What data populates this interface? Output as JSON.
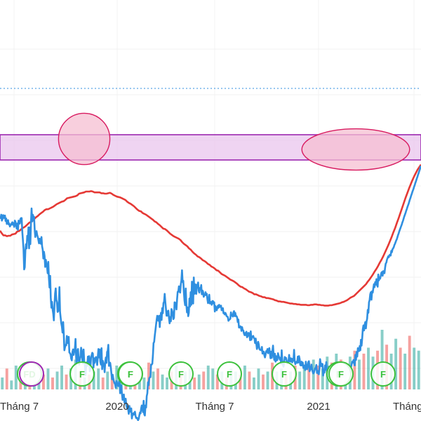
{
  "chart_data": {
    "type": "line",
    "x_tick_labels": [
      "Tháng 7",
      "2020",
      "Tháng 7",
      "2021",
      "Tháng"
    ],
    "grid": true,
    "colors": {
      "price": "#2f8fe0",
      "moving_average": "#e53935",
      "resistance_zone_fill": "#e9c6ee",
      "resistance_zone_border": "#9c27b0",
      "highlight_fill": "#f6bfd1",
      "highlight_border": "#d81b60",
      "last_price_line": "#2f8fe0",
      "event_green": "#3cc13c",
      "event_purple": "#9c27b0",
      "volume_up": "#26a69a",
      "volume_down": "#ef5350"
    },
    "series": [
      {
        "values": [
          0.485,
          0.482,
          0.49,
          0.476,
          0.479,
          0.489,
          0.488,
          0.482,
          0.488,
          0.475,
          0.481,
          0.468,
          0.472,
          0.477,
          0.467,
          0.469,
          0.462,
          0.465,
          0.466,
          0.47,
          0.472,
          0.466,
          0.47,
          0.461,
          0.476,
          0.473,
          0.465,
          0.457,
          0.469,
          0.454,
          0.476,
          0.471,
          0.469,
          0.48,
          0.482,
          0.482,
          0.45,
          0.43,
          0.408,
          0.36,
          0.365,
          0.405,
          0.42,
          0.41,
          0.44,
          0.43,
          0.46,
          0.41,
          0.46,
          0.42,
          0.47,
          0.505,
          0.474,
          0.49,
          0.485,
          0.485,
          0.456,
          0.437,
          0.446,
          0.451,
          0.442,
          0.437,
          0.43,
          0.422,
          0.433,
          0.427,
          0.421,
          0.437,
          0.415,
          0.407,
          0.386,
          0.402,
          0.392,
          0.366,
          0.383,
          0.373,
          0.366,
          0.351,
          0.378,
          0.339,
          0.317,
          0.345,
          0.293,
          0.269,
          0.283,
          0.265,
          0.255,
          0.239,
          0.275,
          0.303,
          0.315,
          0.288,
          0.282,
          0.259,
          0.261,
          0.276,
          0.318,
          0.259,
          0.245,
          0.232,
          0.224,
          0.21,
          0.235,
          0.207,
          0.168,
          0.175,
          0.181,
          0.18,
          0.202,
          0.186,
          0.185,
          0.2,
          0.163,
          0.161,
          0.158,
          0.148,
          0.144,
          0.164,
          0.17,
          0.157,
          0.166,
          0.173,
          0.195,
          0.149,
          0.136,
          0.166,
          0.171,
          0.146,
          0.134,
          0.147,
          0.154,
          0.174,
          0.166,
          0.144,
          0.137,
          0.17,
          0.142,
          0.136,
          0.109,
          0.126,
          0.139,
          0.131,
          0.153,
          0.14,
          0.154,
          0.118,
          0.126,
          0.15,
          0.156,
          0.162,
          0.16,
          0.127,
          0.149,
          0.138,
          0.148,
          0.152,
          0.148,
          0.133,
          0.153,
          0.171,
          0.151,
          0.17,
          0.141,
          0.134,
          0.173,
          0.123,
          0.143,
          0.136,
          0.135,
          0.116,
          0.141,
          0.151,
          0.138,
          0.164,
          0.167,
          0.181,
          0.131,
          0.139,
          0.138,
          0.127,
          0.112,
          0.099,
          0.11,
          0.101,
          0.094,
          0.09,
          0.087,
          0.079,
          0.095,
          0.091,
          0.085,
          0.083,
          0.09,
          0.099,
          0.066,
          0.071,
          0.085,
          0.064,
          0.05,
          0.062,
          0.063,
          0.044,
          0.049,
          0.053,
          0.037,
          0.031,
          0.035,
          0.028,
          0.017,
          0.036,
          0.022,
          0.028,
          0.03,
          0.006,
          0.015,
          0.018,
          0.015,
          0.02,
          0.022,
          0.011,
          0.007,
          0.008,
          0.005,
          0.002,
          0.005,
          0.013,
          0.02,
          0.018,
          0.03,
          0.037,
          0.028,
          0.021,
          0.048,
          0.016,
          0.013,
          0.037,
          0.032,
          0.059,
          0.066,
          0.092,
          0.085,
          0.101,
          0.104,
          0.104,
          0.134,
          0.134,
          0.136,
          0.156,
          0.185,
          0.188,
          0.203,
          0.215,
          0.228,
          0.24,
          0.25,
          0.239,
          0.238,
          0.25,
          0.223,
          0.244,
          0.257,
          0.24,
          0.268,
          0.256,
          0.28,
          0.283,
          0.302,
          0.283,
          0.267,
          0.25,
          0.25,
          0.261,
          0.262,
          0.244,
          0.232,
          0.247,
          0.237,
          0.266,
          0.262,
          0.255,
          0.242,
          0.245,
          0.282,
          0.281,
          0.278,
          0.265,
          0.289,
          0.307,
          0.307,
          0.32,
          0.31,
          0.305,
          0.324,
          0.334,
          0.358,
          0.33,
          0.333,
          0.306,
          0.286,
          0.275,
          0.315,
          0.277,
          0.258,
          0.27,
          0.249,
          0.257,
          0.291,
          0.272,
          0.306,
          0.276,
          0.331,
          0.282,
          0.279,
          0.341,
          0.302,
          0.325,
          0.304,
          0.302,
          0.324,
          0.317,
          0.329,
          0.309,
          0.305,
          0.316,
          0.314,
          0.323,
          0.301,
          0.31,
          0.307,
          0.295,
          0.298,
          0.299,
          0.306,
          0.299,
          0.302,
          0.289,
          0.28,
          0.287,
          0.3,
          0.279,
          0.283,
          0.282,
          0.276,
          0.285,
          0.285,
          0.279,
          0.282,
          0.26,
          0.273,
          0.27,
          0.263,
          0.268,
          0.274,
          0.269,
          0.276,
          0.271,
          0.272,
          0.274,
          0.263,
          0.266,
          0.268,
          0.256,
          0.257,
          0.253,
          0.257,
          0.254,
          0.249,
          0.248,
          0.247,
          0.238,
          0.241,
          0.241,
          0.243,
          0.258,
          0.251,
          0.251,
          0.248,
          0.258,
          0.261,
          0.249,
          0.257,
          0.249,
          0.249,
          0.246,
          0.235,
          0.241,
          0.222,
          0.222,
          0.225,
          0.224,
          0.214,
          0.223,
          0.216,
          0.215,
          0.208,
          0.204,
          0.209,
          0.204,
          0.212,
          0.199,
          0.201,
          0.209,
          0.209,
          0.203,
          0.192,
          0.213,
          0.193,
          0.2,
          0.201,
          0.202,
          0.197,
          0.196,
          0.185,
          0.196,
          0.184,
          0.171,
          0.176,
          0.188,
          0.182,
          0.171,
          0.169,
          0.169,
          0.168,
          0.176,
          0.16,
          0.165,
          0.165,
          0.156,
          0.151,
          0.158,
          0.166,
          0.164,
          0.171,
          0.161,
          0.17,
          0.173,
          0.161,
          0.149,
          0.165,
          0.15,
          0.166,
          0.179,
          0.156,
          0.145,
          0.16,
          0.141,
          0.154,
          0.144,
          0.145,
          0.161,
          0.155,
          0.151,
          0.146,
          0.15,
          0.136,
          0.168,
          0.143,
          0.133,
          0.129,
          0.14,
          0.152,
          0.148,
          0.15,
          0.143,
          0.138,
          0.139,
          0.142,
          0.157,
          0.142,
          0.141,
          0.149,
          0.147,
          0.139,
          0.148,
          0.143,
          0.169,
          0.142,
          0.135,
          0.14,
          0.141,
          0.138,
          0.153,
          0.139,
          0.154,
          0.147,
          0.133,
          0.132,
          0.141,
          0.132,
          0.139,
          0.126,
          0.132,
          0.131,
          0.121,
          0.141,
          0.128,
          0.123,
          0.13,
          0.14,
          0.142,
          0.118,
          0.121,
          0.126,
          0.134,
          0.124,
          0.117,
          0.113,
          0.115,
          0.12,
          0.125,
          0.126,
          0.133,
          0.114,
          0.119,
          0.114,
          0.111,
          0.125,
          0.147,
          0.136,
          0.13,
          0.136,
          0.135,
          0.108,
          0.119,
          0.115,
          0.132,
          0.122,
          0.14,
          0.118,
          0.12,
          0.106,
          0.129,
          0.121,
          0.117,
          0.122,
          0.109,
          0.114,
          0.107,
          0.115,
          0.121,
          0.116,
          0.132,
          0.118,
          0.126,
          0.116,
          0.118,
          0.116,
          0.103,
          0.113,
          0.114,
          0.118,
          0.114,
          0.113,
          0.119,
          0.118,
          0.105,
          0.107,
          0.109,
          0.113,
          0.122,
          0.128,
          0.121,
          0.125,
          0.109,
          0.117,
          0.115,
          0.118,
          0.128,
          0.135,
          0.141,
          0.139,
          0.145,
          0.137,
          0.132,
          0.157,
          0.145,
          0.164,
          0.153,
          0.173,
          0.17,
          0.166,
          0.178,
          0.168,
          0.193,
          0.179,
          0.196,
          0.218,
          0.227,
          0.215,
          0.228,
          0.235,
          0.22,
          0.236,
          0.243,
          0.264,
          0.257,
          0.282,
          0.287,
          0.301,
          0.306,
          0.288,
          0.308,
          0.305,
          0.315,
          0.325,
          0.318,
          0.33,
          0.324,
          0.337,
          0.323,
          0.319,
          0.348,
          0.334,
          0.341,
          0.338,
          0.345,
          0.352,
          0.354,
          0.345,
          0.356,
          0.354,
          0.351,
          0.364,
          0.374,
          0.376,
          0.383,
          0.387,
          0.391,
          0.389,
          0.394,
          0.395,
          0.393,
          0.404,
          0.401,
          0.408,
          0.41,
          0.413,
          0.418,
          0.421,
          0.425,
          0.429,
          0.432,
          0.437,
          0.442,
          0.446,
          0.451,
          0.455,
          0.459,
          0.463,
          0.467,
          0.472,
          0.476,
          0.481,
          0.486,
          0.49,
          0.494,
          0.499,
          0.503,
          0.508,
          0.512,
          0.516,
          0.521,
          0.526,
          0.53,
          0.535,
          0.539,
          0.544,
          0.548,
          0.552,
          0.557,
          0.561,
          0.566,
          0.57,
          0.575,
          0.579,
          0.584,
          0.588,
          0.593,
          0.597,
          0.602,
          0.606
        ]
      },
      {
        "values": [
          0.452,
          0.446,
          0.441,
          0.441,
          0.439,
          0.44,
          0.44,
          0.443,
          0.444,
          0.445,
          0.45,
          0.451,
          0.454,
          0.458,
          0.46,
          0.463,
          0.467,
          0.471,
          0.473,
          0.476,
          0.48,
          0.484,
          0.487,
          0.491,
          0.494,
          0.497,
          0.501,
          0.503,
          0.503,
          0.505,
          0.507,
          0.509,
          0.512,
          0.515,
          0.517,
          0.519,
          0.521,
          0.522,
          0.525,
          0.529,
          0.53,
          0.531,
          0.532,
          0.533,
          0.534,
          0.536,
          0.54,
          0.541,
          0.542,
          0.543,
          0.545,
          0.545,
          0.545,
          0.546,
          0.545,
          0.543,
          0.543,
          0.543,
          0.543,
          0.541,
          0.541,
          0.54,
          0.54,
          0.541,
          0.542,
          0.54,
          0.537,
          0.535,
          0.533,
          0.532,
          0.531,
          0.529,
          0.527,
          0.525,
          0.521,
          0.518,
          0.516,
          0.513,
          0.51,
          0.506,
          0.502,
          0.499,
          0.498,
          0.494,
          0.492,
          0.49,
          0.487,
          0.484,
          0.481,
          0.478,
          0.474,
          0.472,
          0.468,
          0.465,
          0.461,
          0.457,
          0.456,
          0.453,
          0.449,
          0.445,
          0.442,
          0.439,
          0.437,
          0.435,
          0.433,
          0.43,
          0.425,
          0.421,
          0.418,
          0.415,
          0.41,
          0.407,
          0.402,
          0.398,
          0.395,
          0.391,
          0.389,
          0.386,
          0.382,
          0.38,
          0.377,
          0.373,
          0.371,
          0.367,
          0.365,
          0.362,
          0.358,
          0.357,
          0.353,
          0.349,
          0.347,
          0.345,
          0.342,
          0.339,
          0.336,
          0.334,
          0.332,
          0.329,
          0.326,
          0.322,
          0.319,
          0.318,
          0.315,
          0.313,
          0.31,
          0.307,
          0.306,
          0.304,
          0.301,
          0.301,
          0.299,
          0.297,
          0.296,
          0.294,
          0.294,
          0.292,
          0.292,
          0.291,
          0.29,
          0.289,
          0.287,
          0.286,
          0.284,
          0.284,
          0.283,
          0.283,
          0.282,
          0.281,
          0.28,
          0.279,
          0.279,
          0.278,
          0.278,
          0.277,
          0.277,
          0.276,
          0.276,
          0.276,
          0.276,
          0.275,
          0.275,
          0.276,
          0.276,
          0.277,
          0.277,
          0.276,
          0.276,
          0.275,
          0.275,
          0.274,
          0.274,
          0.274,
          0.275,
          0.275,
          0.276,
          0.277,
          0.278,
          0.279,
          0.28,
          0.282,
          0.283,
          0.285,
          0.287,
          0.29,
          0.293,
          0.295,
          0.297,
          0.301,
          0.305,
          0.309,
          0.313,
          0.317,
          0.321,
          0.325,
          0.331,
          0.336,
          0.342,
          0.348,
          0.355,
          0.361,
          0.368,
          0.376,
          0.383,
          0.391,
          0.4,
          0.409,
          0.418,
          0.428,
          0.438,
          0.449,
          0.459,
          0.471,
          0.482,
          0.494,
          0.506,
          0.518,
          0.53,
          0.541,
          0.552,
          0.562,
          0.572,
          0.581,
          0.589,
          0.597,
          0.603,
          0.609
        ]
      }
    ],
    "volume": {
      "values": [
        0.2,
        0.35,
        0.15,
        0.4,
        0.25,
        0.3,
        0.2,
        0.45,
        0.3,
        0.25,
        0.35,
        0.2,
        0.3,
        0.4,
        0.25,
        0.35,
        0.5,
        0.3,
        0.2,
        0.25,
        0.3,
        0.35,
        0.2,
        0.3,
        0.25,
        0.4,
        0.3,
        0.2,
        0.35,
        0.25,
        0.3,
        0.2,
        0.45,
        0.3,
        0.35,
        0.25,
        0.2,
        0.3,
        0.4,
        0.25,
        0.3,
        0.35,
        0.2,
        0.25,
        0.3,
        0.4,
        0.35,
        0.25,
        0.3,
        0.2,
        0.35,
        0.3,
        0.25,
        0.4,
        0.3,
        0.2,
        0.35,
        0.25,
        0.3,
        0.45,
        0.3,
        0.35,
        0.25,
        0.3,
        0.4,
        0.3,
        0.35,
        0.45,
        0.5,
        0.4,
        0.35,
        0.55,
        0.45,
        0.6,
        0.5,
        0.45,
        0.55,
        0.65,
        0.5,
        0.6,
        0.7,
        0.55,
        0.65,
        1.0,
        0.75,
        0.6,
        0.85,
        0.7,
        0.6,
        0.9,
        0.7,
        0.65
      ],
      "direction": [
        1,
        0,
        1,
        1,
        0,
        1,
        0,
        1,
        1,
        0,
        1,
        0,
        1,
        1,
        0,
        1,
        1,
        0,
        1,
        0,
        1,
        1,
        0,
        1,
        0,
        1,
        1,
        0,
        1,
        0,
        1,
        1,
        0,
        1,
        0,
        1,
        1,
        0,
        1,
        0,
        1,
        1,
        0,
        1,
        0,
        1,
        1,
        0,
        1,
        0,
        1,
        1,
        0,
        1,
        0,
        1,
        1,
        0,
        1,
        0,
        1,
        1,
        0,
        1,
        0,
        1,
        1,
        0,
        1,
        0,
        1,
        1,
        0,
        1,
        0,
        1,
        1,
        0,
        1,
        0,
        1,
        1,
        0,
        1,
        0,
        1,
        1,
        0,
        1,
        0,
        1,
        1
      ]
    },
    "resistance_zone": {
      "lower": 0.62,
      "upper": 0.68
    },
    "last_price_line": 0.79,
    "highlights": [
      {
        "shape": "circle",
        "center_x": 0.2,
        "center_y": 0.67,
        "radius": 0.061
      },
      {
        "shape": "ellipse",
        "center_x": 0.845,
        "center_y": 0.645,
        "radius_x": 0.128,
        "radius_y": 0.049
      }
    ],
    "event_markers": {
      "positions": [
        0.07,
        0.075,
        0.195,
        0.308,
        0.31,
        0.43,
        0.545,
        0.675,
        0.805,
        0.81,
        0.91
      ],
      "labels": [
        "FD",
        "",
        "F",
        "F",
        "F",
        "F",
        "F",
        "F",
        "F",
        "F",
        "F"
      ],
      "colors": [
        "green",
        "purple",
        "green",
        "green",
        "green",
        "green",
        "green",
        "green",
        "green",
        "green",
        "green"
      ]
    }
  }
}
